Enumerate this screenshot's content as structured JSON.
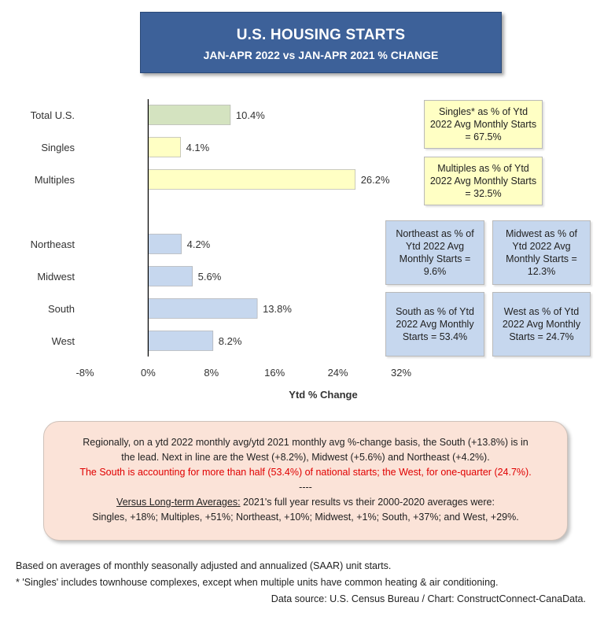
{
  "title": {
    "main": "U.S. HOUSING STARTS",
    "sub": "JAN-APR 2022 vs JAN-APR 2021 % CHANGE"
  },
  "chart_data": {
    "type": "bar",
    "orientation": "horizontal",
    "categories": [
      "Total U.S.",
      "Singles",
      "Multiples",
      "Northeast",
      "Midwest",
      "South",
      "West"
    ],
    "values": [
      10.4,
      4.1,
      26.2,
      4.2,
      5.6,
      13.8,
      8.2
    ],
    "value_labels": [
      "10.4%",
      "4.1%",
      "26.2%",
      "4.2%",
      "5.6%",
      "13.8%",
      "8.2%"
    ],
    "colors": [
      "#d4e3c0",
      "#ffffc4",
      "#ffffc4",
      "#c6d7ee",
      "#c6d7ee",
      "#c6d7ee",
      "#c6d7ee"
    ],
    "xlabel": "Ytd % Change",
    "xlim": [
      -8,
      32
    ],
    "xticks": [
      "-8%",
      "0%",
      "8%",
      "16%",
      "24%",
      "32%"
    ],
    "grid": false,
    "legend": "none"
  },
  "notes": {
    "singles": "Singles* as % of Ytd 2022 Avg Monthly Starts = 67.5%",
    "multiples": "Multiples as % of Ytd 2022 Avg Monthly Starts = 32.5%",
    "northeast": "Northeast as % of Ytd 2022 Avg Monthly Starts = 9.6%",
    "midwest": "Midwest as % of Ytd 2022 Avg Monthly Starts = 12.3%",
    "south": "South as % of Ytd 2022 Avg Monthly Starts = 53.4%",
    "west": "West as % of Ytd 2022 Avg Monthly Starts = 24.7%"
  },
  "summary": {
    "line1": "Regionally, on a ytd 2022 monthly avg/ytd 2021 monthly avg %-change basis, the South (+13.8%) is in",
    "line2": "the lead. Next in line are the West (+8.2%), Midwest (+5.6%) and Northeast (+4.2%).",
    "line3_red": "The South is accounting for more than half (53.4%) of national starts; the West, for one-quarter (24.7%).",
    "divider": "----",
    "line4_underlined": "Versus Long-term Averages:",
    "line4_rest": " 2021's full year results vs their 2000-2020 averages were:",
    "line5": "Singles, +18%; Multiples, +51%; Northeast, +10%; Midwest, +1%; South, +37%; and West, +29%."
  },
  "footer": {
    "note1": "Based on averages of monthly seasonally adjusted and annualized (SAAR) unit starts.",
    "note2": "* 'Singles' includes townhouse complexes, except when multiple units have common heating & air conditioning.",
    "source": "Data source: U.S. Census Bureau / Chart: ConstructConnect-CanaData."
  }
}
